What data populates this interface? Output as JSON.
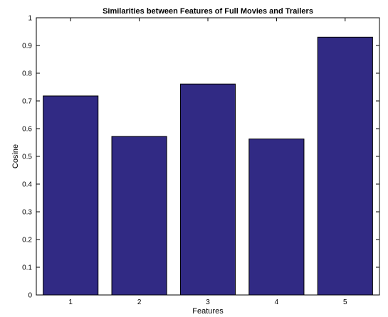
{
  "chart_data": {
    "type": "bar",
    "title": "Similarities between Features of Full Movies and Trailers",
    "xlabel": "Features",
    "ylabel": "Cosine",
    "categories": [
      "1",
      "2",
      "3",
      "4",
      "5"
    ],
    "values": [
      0.718,
      0.572,
      0.761,
      0.563,
      0.93
    ],
    "ylim": [
      0,
      1
    ],
    "yticks": [
      "0",
      "0.1",
      "0.2",
      "0.3",
      "0.4",
      "0.5",
      "0.6",
      "0.7",
      "0.8",
      "0.9",
      "1"
    ],
    "bar_color": "#312a84",
    "grid": false,
    "legend": "none"
  }
}
